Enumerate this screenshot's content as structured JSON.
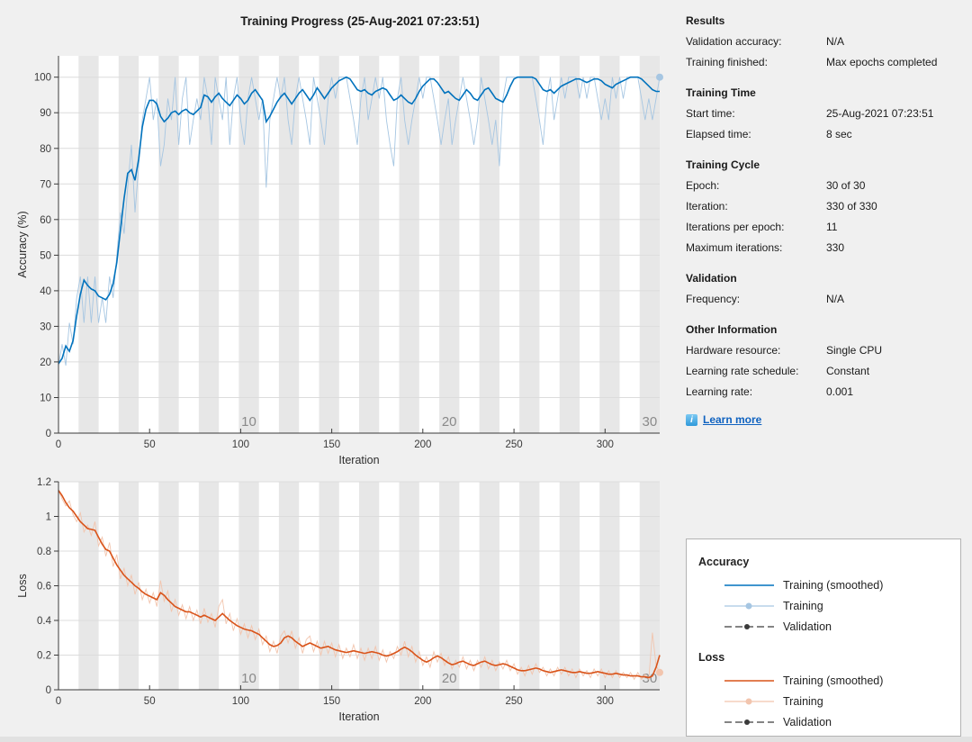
{
  "window": {
    "title": "Training Progress (25-Aug-2021 07:23:51)"
  },
  "info_panel": {
    "sections": [
      {
        "heading": "Results",
        "rows": [
          {
            "label": "Validation accuracy:",
            "value": "N/A"
          },
          {
            "label": "Training finished:",
            "value": "Max epochs completed"
          }
        ]
      },
      {
        "heading": "Training Time",
        "rows": [
          {
            "label": "Start time:",
            "value": "25-Aug-2021 07:23:51"
          },
          {
            "label": "Elapsed time:",
            "value": "8 sec"
          }
        ]
      },
      {
        "heading": "Training Cycle",
        "rows": [
          {
            "label": "Epoch:",
            "value": "30 of 30"
          },
          {
            "label": "Iteration:",
            "value": "330 of 330"
          },
          {
            "label": "Iterations per epoch:",
            "value": "11"
          },
          {
            "label": "Maximum iterations:",
            "value": "330"
          }
        ]
      },
      {
        "heading": "Validation",
        "rows": [
          {
            "label": "Frequency:",
            "value": "N/A"
          }
        ]
      },
      {
        "heading": "Other Information",
        "rows": [
          {
            "label": "Hardware resource:",
            "value": "Single CPU"
          },
          {
            "label": "Learning rate schedule:",
            "value": "Constant"
          },
          {
            "label": "Learning rate:",
            "value": "0.001"
          }
        ]
      }
    ],
    "learn_more": {
      "label": "Learn more",
      "icon_glyph": "i"
    }
  },
  "legend": {
    "groups": [
      {
        "heading": "Accuracy",
        "entries": [
          {
            "label": "Training (smoothed)",
            "style": "solid",
            "color": "#0072bd"
          },
          {
            "label": "Training",
            "style": "solid-marker",
            "color": "#a6c6e2"
          },
          {
            "label": "Validation",
            "style": "dashed-marker",
            "color": "#3b3b3b"
          }
        ]
      },
      {
        "heading": "Loss",
        "entries": [
          {
            "label": "Training (smoothed)",
            "style": "solid",
            "color": "#d95319"
          },
          {
            "label": "Training",
            "style": "solid-marker",
            "color": "#f2c5ae"
          },
          {
            "label": "Validation",
            "style": "dashed-marker",
            "color": "#3b3b3b"
          }
        ]
      }
    ]
  },
  "chart_data": [
    {
      "id": "accuracy",
      "type": "line",
      "title": "",
      "xlabel": "Iteration",
      "ylabel": "Accuracy (%)",
      "xlim": [
        0,
        330
      ],
      "ylim": [
        0,
        106
      ],
      "xticks": [
        0,
        50,
        100,
        150,
        200,
        250,
        300
      ],
      "yticks": [
        0,
        10,
        20,
        30,
        40,
        50,
        60,
        70,
        80,
        90,
        100
      ],
      "grid": "horizontal",
      "epoch_bands": {
        "iterations_per_epoch": 11,
        "num_epochs": 30,
        "shaded": "even"
      },
      "epoch_labels": [
        {
          "text": "10",
          "x": 104.5
        },
        {
          "text": "20",
          "x": 214.5
        },
        {
          "text": "30",
          "x": 324.5
        }
      ],
      "colors": {
        "band": "#e7e7e7",
        "grid": "#dcdcdc"
      },
      "x_step": 2,
      "series": [
        {
          "name": "Training",
          "color": "#a6c6e2",
          "width": 0.9,
          "values": [
            19,
            25,
            19,
            31,
            25,
            38,
            44,
            31,
            44,
            31,
            44,
            31,
            38,
            31,
            44,
            38,
            50,
            62,
            56,
            69,
            81,
            62,
            75,
            88,
            94,
            100,
            88,
            94,
            75,
            81,
            94,
            88,
            100,
            81,
            94,
            100,
            81,
            88,
            94,
            88,
            100,
            94,
            81,
            100,
            94,
            88,
            100,
            81,
            94,
            100,
            88,
            81,
            94,
            100,
            94,
            88,
            94,
            69,
            88,
            94,
            100,
            94,
            100,
            88,
            81,
            94,
            100,
            94,
            88,
            81,
            100,
            94,
            88,
            81,
            94,
            100,
            94,
            100,
            100,
            100,
            94,
            88,
            81,
            94,
            100,
            88,
            94,
            100,
            94,
            100,
            88,
            81,
            75,
            94,
            100,
            88,
            81,
            88,
            94,
            100,
            94,
            100,
            100,
            94,
            88,
            81,
            88,
            94,
            81,
            88,
            94,
            100,
            94,
            88,
            81,
            88,
            100,
            94,
            88,
            81,
            88,
            75,
            94,
            100,
            100,
            100,
            100,
            100,
            100,
            100,
            100,
            94,
            88,
            81,
            94,
            100,
            88,
            94,
            100,
            94,
            100,
            100,
            100,
            94,
            100,
            94,
            100,
            100,
            94,
            88,
            94,
            88,
            100,
            94,
            100,
            94,
            100,
            100,
            100,
            100,
            94,
            88,
            94,
            88,
            94,
            100
          ]
        },
        {
          "name": "Training (smoothed)",
          "color": "#0072bd",
          "width": 1.6,
          "values": [
            19.5,
            21,
            24.5,
            23,
            26,
            33,
            39,
            43,
            41.5,
            40.5,
            40,
            38.5,
            38,
            37.5,
            39,
            42,
            48,
            57,
            66,
            73,
            74,
            71,
            77,
            86,
            91,
            93.5,
            93.5,
            92.5,
            89,
            87.5,
            88.5,
            90,
            90.5,
            89.5,
            90.5,
            91,
            90,
            89.5,
            90.5,
            91.5,
            95,
            94.5,
            93,
            94.5,
            95.5,
            94,
            93,
            92,
            93.5,
            95,
            94,
            92.5,
            93.5,
            95.5,
            96.5,
            95,
            93.5,
            87.5,
            89,
            91,
            93,
            94.5,
            95.5,
            94,
            92.5,
            94,
            95.5,
            96.5,
            95,
            93.5,
            95,
            97,
            95.5,
            94,
            95.5,
            97,
            98,
            99,
            99.5,
            100,
            99.5,
            98,
            96.5,
            96,
            96.5,
            95.5,
            95,
            96,
            96.5,
            97,
            96.5,
            95,
            93.5,
            94,
            95,
            94,
            93,
            92.5,
            94,
            96,
            97.5,
            98.5,
            99.5,
            99.5,
            98.5,
            97,
            95.5,
            96,
            95,
            94,
            93.5,
            95,
            96.5,
            95.5,
            94,
            93.5,
            95,
            96.5,
            97,
            95.5,
            94,
            93.5,
            93,
            95,
            97.5,
            99.5,
            100,
            100,
            100,
            100,
            100,
            99.5,
            98,
            96.5,
            96,
            96.5,
            95.5,
            96.5,
            97.5,
            98,
            98.5,
            99,
            99.5,
            99.5,
            99,
            98.5,
            99,
            99.5,
            99.5,
            99,
            98,
            97.5,
            97,
            98,
            98.5,
            99,
            99.5,
            100,
            100,
            100,
            99.5,
            98.5,
            97.5,
            96.5,
            96,
            96
          ]
        }
      ],
      "end_marker": {
        "x": 330,
        "y": 100,
        "color": "#a6c6e2"
      }
    },
    {
      "id": "loss",
      "type": "line",
      "title": "",
      "xlabel": "Iteration",
      "ylabel": "Loss",
      "xlim": [
        0,
        330
      ],
      "ylim": [
        0,
        1.2
      ],
      "xticks": [
        0,
        50,
        100,
        150,
        200,
        250,
        300
      ],
      "yticks": [
        0,
        0.2,
        0.4,
        0.6,
        0.8,
        1,
        1.2
      ],
      "grid": "horizontal",
      "epoch_bands": {
        "iterations_per_epoch": 11,
        "num_epochs": 30,
        "shaded": "even"
      },
      "epoch_labels": [
        {
          "text": "10",
          "x": 104.5
        },
        {
          "text": "20",
          "x": 214.5
        },
        {
          "text": "30",
          "x": 324.5
        }
      ],
      "colors": {
        "band": "#e7e7e7",
        "grid": "#dcdcdc"
      },
      "x_step": 2,
      "series": [
        {
          "name": "Training",
          "color": "#f2c5ae",
          "width": 0.9,
          "values": [
            1.15,
            1.1,
            1.06,
            1.09,
            1.01,
            0.97,
            1.02,
            0.91,
            0.95,
            0.89,
            0.97,
            0.83,
            0.88,
            0.77,
            0.85,
            0.71,
            0.78,
            0.64,
            0.7,
            0.6,
            0.66,
            0.55,
            0.62,
            0.52,
            0.58,
            0.5,
            0.56,
            0.48,
            0.63,
            0.51,
            0.57,
            0.45,
            0.52,
            0.43,
            0.49,
            0.41,
            0.48,
            0.4,
            0.46,
            0.38,
            0.47,
            0.39,
            0.44,
            0.36,
            0.48,
            0.52,
            0.38,
            0.44,
            0.34,
            0.41,
            0.32,
            0.38,
            0.3,
            0.37,
            0.29,
            0.35,
            0.26,
            0.31,
            0.22,
            0.28,
            0.21,
            0.31,
            0.34,
            0.27,
            0.34,
            0.24,
            0.3,
            0.21,
            0.29,
            0.31,
            0.22,
            0.28,
            0.2,
            0.28,
            0.21,
            0.27,
            0.19,
            0.26,
            0.18,
            0.24,
            0.19,
            0.26,
            0.18,
            0.24,
            0.17,
            0.24,
            0.18,
            0.25,
            0.17,
            0.23,
            0.16,
            0.22,
            0.18,
            0.25,
            0.2,
            0.28,
            0.19,
            0.25,
            0.16,
            0.22,
            0.14,
            0.19,
            0.13,
            0.22,
            0.16,
            0.21,
            0.14,
            0.19,
            0.12,
            0.17,
            0.13,
            0.19,
            0.12,
            0.17,
            0.11,
            0.17,
            0.13,
            0.19,
            0.12,
            0.17,
            0.11,
            0.16,
            0.12,
            0.17,
            0.11,
            0.15,
            0.09,
            0.13,
            0.08,
            0.14,
            0.09,
            0.15,
            0.1,
            0.13,
            0.08,
            0.12,
            0.08,
            0.13,
            0.09,
            0.13,
            0.08,
            0.12,
            0.07,
            0.12,
            0.08,
            0.11,
            0.07,
            0.12,
            0.08,
            0.12,
            0.07,
            0.11,
            0.07,
            0.11,
            0.07,
            0.1,
            0.07,
            0.1,
            0.06,
            0.1,
            0.06,
            0.09,
            0.06,
            0.33,
            0.14,
            0.1
          ]
        },
        {
          "name": "Training (smoothed)",
          "color": "#d95319",
          "width": 1.6,
          "values": [
            1.15,
            1.12,
            1.08,
            1.05,
            1.03,
            1.0,
            0.97,
            0.95,
            0.93,
            0.925,
            0.92,
            0.88,
            0.84,
            0.81,
            0.8,
            0.76,
            0.72,
            0.69,
            0.66,
            0.64,
            0.62,
            0.6,
            0.585,
            0.565,
            0.55,
            0.54,
            0.53,
            0.52,
            0.56,
            0.545,
            0.52,
            0.5,
            0.48,
            0.47,
            0.46,
            0.45,
            0.45,
            0.44,
            0.43,
            0.42,
            0.43,
            0.42,
            0.41,
            0.4,
            0.42,
            0.44,
            0.42,
            0.4,
            0.385,
            0.37,
            0.36,
            0.35,
            0.345,
            0.34,
            0.33,
            0.32,
            0.3,
            0.28,
            0.26,
            0.25,
            0.255,
            0.27,
            0.3,
            0.31,
            0.3,
            0.28,
            0.265,
            0.25,
            0.26,
            0.27,
            0.26,
            0.25,
            0.24,
            0.245,
            0.25,
            0.24,
            0.23,
            0.225,
            0.22,
            0.215,
            0.22,
            0.225,
            0.22,
            0.215,
            0.21,
            0.215,
            0.22,
            0.215,
            0.21,
            0.2,
            0.195,
            0.2,
            0.21,
            0.22,
            0.235,
            0.245,
            0.235,
            0.22,
            0.2,
            0.185,
            0.17,
            0.16,
            0.17,
            0.185,
            0.195,
            0.185,
            0.17,
            0.155,
            0.145,
            0.15,
            0.16,
            0.165,
            0.155,
            0.145,
            0.14,
            0.15,
            0.16,
            0.165,
            0.155,
            0.145,
            0.14,
            0.145,
            0.15,
            0.145,
            0.135,
            0.125,
            0.115,
            0.11,
            0.11,
            0.115,
            0.12,
            0.125,
            0.12,
            0.11,
            0.105,
            0.1,
            0.105,
            0.11,
            0.115,
            0.11,
            0.105,
            0.1,
            0.1,
            0.105,
            0.1,
            0.095,
            0.095,
            0.1,
            0.105,
            0.1,
            0.095,
            0.09,
            0.09,
            0.095,
            0.09,
            0.085,
            0.085,
            0.08,
            0.08,
            0.08,
            0.075,
            0.075,
            0.07,
            0.08,
            0.13,
            0.2
          ]
        }
      ],
      "end_marker": {
        "x": 330,
        "y": 0.1,
        "color": "#f2c5ae"
      }
    }
  ]
}
